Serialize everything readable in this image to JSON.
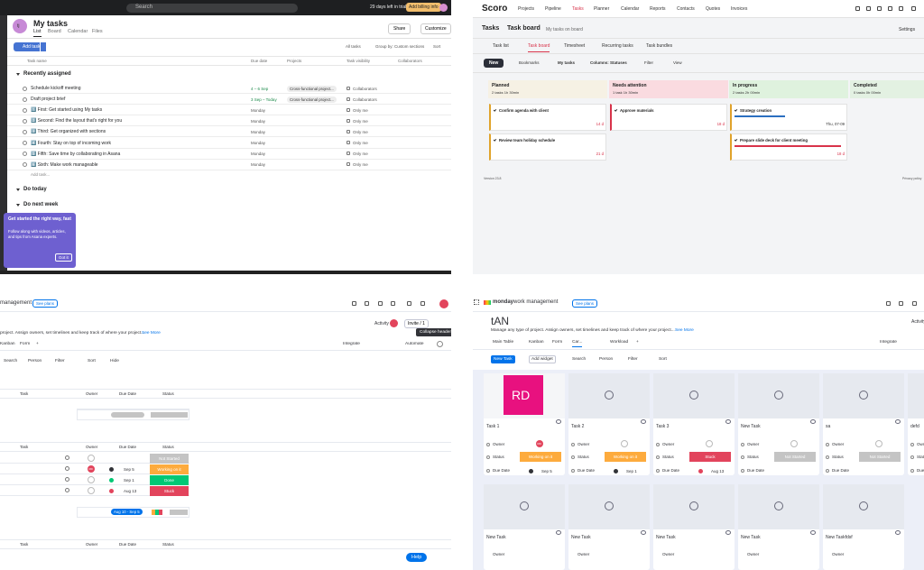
{
  "asana": {
    "search": "Search",
    "trial": "29 days left in trial",
    "billing": "Add billing info",
    "user": "tj",
    "title": "My tasks",
    "tabs": [
      "List",
      "Board",
      "Calendar",
      "Files"
    ],
    "share": "Share",
    "customize": "Customize",
    "add_task": "Add task",
    "toolbar": [
      "All tasks",
      "Group by: Custom sections",
      "Sort"
    ],
    "columns": [
      "Task name",
      "Due date",
      "Projects",
      "Task visibility",
      "Collaborators"
    ],
    "section": "Recently assigned",
    "rows": [
      {
        "name": "Schedule kickoff meeting",
        "due": "4 – 6 Sep",
        "due_color": "#1b8a4a",
        "project": "Cross-functional project...",
        "visibility": "Collaborators"
      },
      {
        "name": "Draft project brief",
        "due": "3 Sep – Today",
        "due_color": "#1b8a4a",
        "project": "Cross-functional project...",
        "visibility": "Collaborators"
      },
      {
        "name": "1️⃣ First: Get started using My tasks",
        "due": "Monday",
        "visibility": "Only me"
      },
      {
        "name": "2️⃣ Second: Find the layout that's right for you",
        "due": "Monday",
        "visibility": "Only me"
      },
      {
        "name": "3️⃣ Third: Get organized with sections",
        "due": "Monday",
        "visibility": "Only me"
      },
      {
        "name": "4️⃣ Fourth: Stay on top of incoming work",
        "due": "Monday",
        "visibility": "Only me"
      },
      {
        "name": "5️⃣ Fifth: Save time by collaborating in Asana",
        "due": "Monday",
        "visibility": "Only me"
      },
      {
        "name": "6️⃣ Sixth: Make work manageable",
        "due": "Monday",
        "visibility": "Only me"
      }
    ],
    "add_row": "Add task...",
    "more_sections": [
      "Do today",
      "Do next week"
    ],
    "tip": {
      "title": "Get started the right way, fast",
      "body": "Follow along with videos, articles, and tips from Asana experts.",
      "button": "Got it"
    }
  },
  "scoro": {
    "logo": "Scoro",
    "nav": [
      "Projects",
      "Pipeline",
      "Tasks",
      "Planner",
      "Calendar",
      "Reports",
      "Contacts",
      "Quotes",
      "Invoices"
    ],
    "crumbs": [
      "Tasks",
      "Task board"
    ],
    "subtitle": "My tasks on board",
    "settings": "Settings",
    "tabs": [
      "Task list",
      "Task board",
      "Timesheet",
      "Recurring tasks",
      "Task bundles"
    ],
    "new": "New",
    "filters": [
      "Bookmarks",
      "My tasks",
      "Columns: Statuses",
      "Filter",
      "View"
    ],
    "columns": [
      {
        "name": "Planned",
        "meta": "2 tasks 1h 30min",
        "color": "#f6f1e4",
        "cards": [
          {
            "title": "Confirm agenda with client",
            "due": "14 d"
          },
          {
            "title": "Review team holiday schedule",
            "due": "21 d"
          }
        ]
      },
      {
        "name": "Needs attention",
        "meta": "1 task 1h 30min",
        "color": "#fadbe0",
        "cards": [
          {
            "title": "Approve materials",
            "due": "18 d"
          }
        ]
      },
      {
        "name": "In progress",
        "meta": "2 tasks 2h 00min",
        "color": "#dff2de",
        "cards": [
          {
            "title": "Strategy creation",
            "due": "Thu, 07-09",
            "bar": "#2b6fc0"
          },
          {
            "title": "Prepare slide deck for client meeting",
            "due": "18 d",
            "bar": "#d8334a"
          }
        ]
      },
      {
        "name": "Completed",
        "meta": "0 tasks 0h 00min",
        "color": "#e3f1e2",
        "cards": []
      }
    ],
    "version": "Version 23.8",
    "privacy": "Privacy policy"
  },
  "monday_table": {
    "brand": "management",
    "plans": "See plans",
    "activity": "Activity",
    "user": "RD",
    "invite": "Invite / 1",
    "tooltip": "Collapse header",
    "description": "project. Assign owners, set timelines and keep track of where your project...",
    "see_more": "See More",
    "tabs": [
      "Kanban",
      "Form",
      "+"
    ],
    "integrate": "Integrate",
    "automate": "Automate",
    "toolbar": [
      "Search",
      "Person",
      "Filter",
      "Sort",
      "Hide"
    ],
    "columns": [
      "Task",
      "Owner",
      "Due Date",
      "Status"
    ],
    "rows": [
      {
        "status": "Not Started",
        "color": "#c4c4c4"
      },
      {
        "owner": "RD",
        "due": "Sep 5",
        "status": "Working on it",
        "color": "#fdab3d"
      },
      {
        "due": "Sep 1",
        "status": "Done",
        "color": "#00c875"
      },
      {
        "due": "Aug 13",
        "status": "Stuck",
        "color": "#e2445c"
      }
    ],
    "range": "Aug 10 - Sep 5",
    "help": "Help"
  },
  "monday_cards": {
    "brand": "monday",
    "product": "work management",
    "plans": "See plans",
    "title": "tAN",
    "description": "Manage any type of project. Assign owners, set timelines and keep track of where your project...",
    "see_more": "See More",
    "tabs": [
      "Main Table",
      "Kanban",
      "Form",
      "Car...",
      "Workload",
      "+"
    ],
    "integrate": "Integrate",
    "activity": "Activity",
    "new_task": "New Task",
    "toolbar": [
      "Add widget",
      "Search",
      "Person",
      "Filter",
      "Sort"
    ],
    "fields": [
      "Owner",
      "Status",
      "Due Date"
    ],
    "cards": [
      {
        "name": "Task 1",
        "image": "RD",
        "owner": "RD",
        "status": "Working on it",
        "color": "#fdab3d",
        "due": "Sep 5"
      },
      {
        "name": "Task 2",
        "status": "Working on it",
        "color": "#fdab3d",
        "due": "Sep 1"
      },
      {
        "name": "Task 3",
        "status": "Stuck",
        "color": "#e2445c",
        "due": "Aug 13"
      },
      {
        "name": "New Task",
        "status": "Not Started",
        "color": "#c4c4c4"
      },
      {
        "name": "sa",
        "status": "Not Started",
        "color": "#c4c4c4"
      },
      {
        "name": "defd",
        "status": "Not Started",
        "color": "#c4c4c4"
      }
    ],
    "cards_row2": [
      "New Task",
      "New Task",
      "New Task",
      "New Task",
      "New Taskfdsf"
    ]
  }
}
